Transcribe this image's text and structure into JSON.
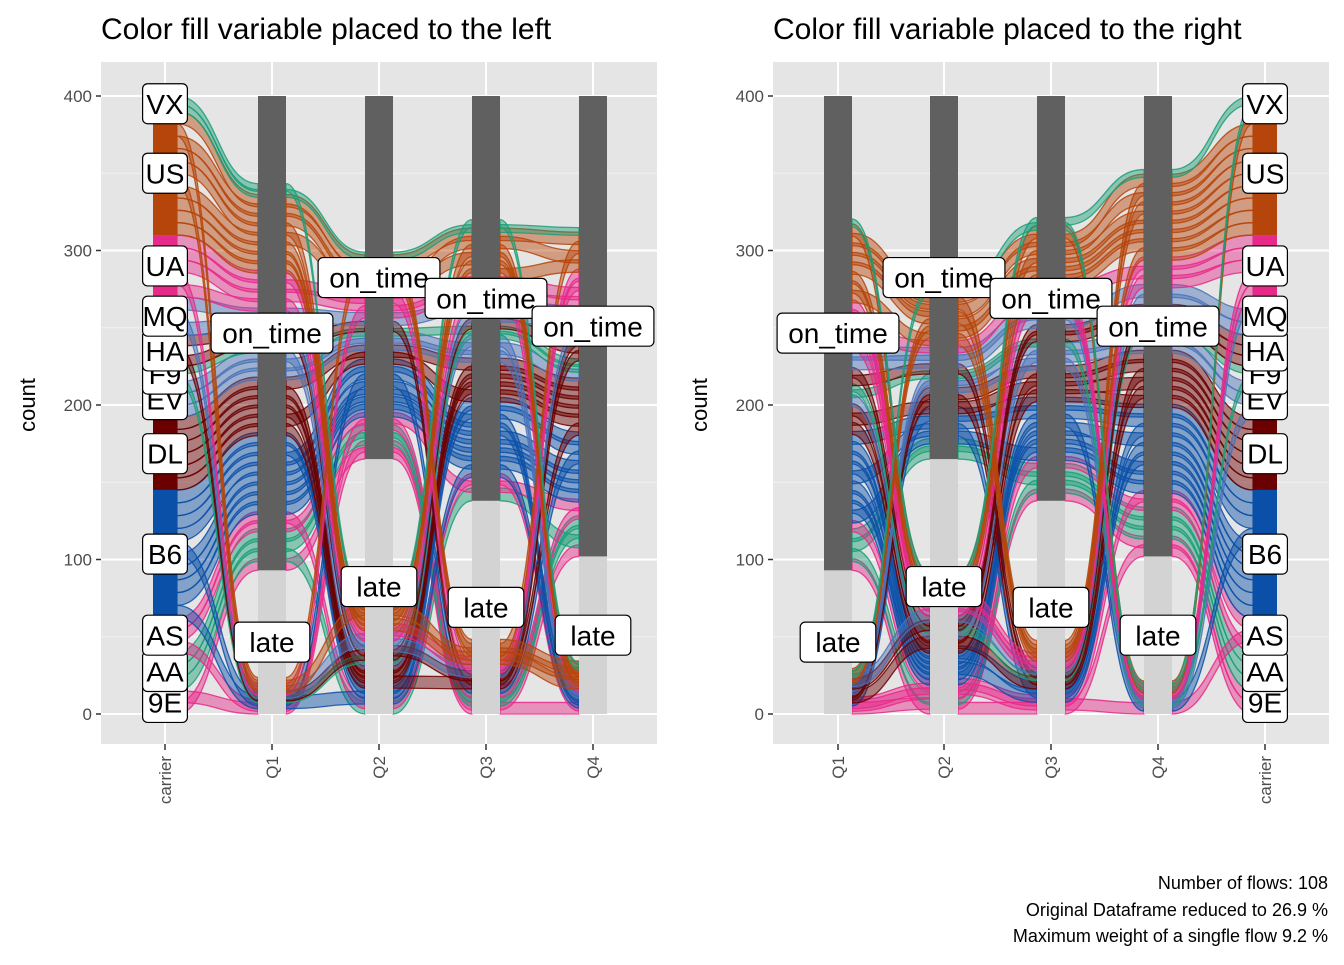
{
  "chart_data": [
    {
      "type": "alluvial",
      "title": "Color fill variable placed to the left",
      "xlabel": "",
      "ylabel": "count",
      "ylim": [
        0,
        420
      ],
      "yticks": [
        0,
        100,
        200,
        300,
        400
      ],
      "grid": true,
      "x_axis_order": [
        "carrier",
        "Q1",
        "Q2",
        "Q3",
        "Q4"
      ],
      "carrier_strata": [
        {
          "label": "9E",
          "bottom": 0,
          "top": 15
        },
        {
          "label": "AA",
          "bottom": 15,
          "top": 40
        },
        {
          "label": "AS",
          "bottom": 40,
          "top": 62
        },
        {
          "label": "B6",
          "bottom": 62,
          "top": 145
        },
        {
          "label": "DL",
          "bottom": 145,
          "top": 192
        },
        {
          "label": "EV",
          "bottom": 192,
          "top": 215
        },
        {
          "label": "F9",
          "bottom": 215,
          "top": 225
        },
        {
          "label": "HA",
          "bottom": 225,
          "top": 245
        },
        {
          "label": "MQ",
          "bottom": 245,
          "top": 270
        },
        {
          "label": "UA",
          "bottom": 270,
          "top": 310
        },
        {
          "label": "US",
          "bottom": 310,
          "top": 390
        },
        {
          "label": "VX",
          "bottom": 390,
          "top": 400
        }
      ],
      "quarter_strata": [
        {
          "quarter": "Q1",
          "late": 93,
          "on_time": 307
        },
        {
          "quarter": "Q2",
          "late": 165,
          "on_time": 235
        },
        {
          "quarter": "Q3",
          "late": 138,
          "on_time": 262
        },
        {
          "quarter": "Q4",
          "late": 102,
          "on_time": 298
        }
      ],
      "labels": {
        "late": "late",
        "on_time": "on_time"
      }
    },
    {
      "type": "alluvial",
      "title": "Color fill variable placed to the right",
      "xlabel": "",
      "ylabel": "count",
      "ylim": [
        0,
        420
      ],
      "yticks": [
        0,
        100,
        200,
        300,
        400
      ],
      "grid": true,
      "x_axis_order": [
        "Q1",
        "Q2",
        "Q3",
        "Q4",
        "carrier"
      ],
      "carrier_strata": [
        {
          "label": "9E",
          "bottom": 0,
          "top": 15
        },
        {
          "label": "AA",
          "bottom": 15,
          "top": 40
        },
        {
          "label": "AS",
          "bottom": 40,
          "top": 62
        },
        {
          "label": "B6",
          "bottom": 62,
          "top": 145
        },
        {
          "label": "DL",
          "bottom": 145,
          "top": 192
        },
        {
          "label": "EV",
          "bottom": 192,
          "top": 215
        },
        {
          "label": "F9",
          "bottom": 215,
          "top": 225
        },
        {
          "label": "HA",
          "bottom": 225,
          "top": 245
        },
        {
          "label": "MQ",
          "bottom": 245,
          "top": 270
        },
        {
          "label": "UA",
          "bottom": 270,
          "top": 310
        },
        {
          "label": "US",
          "bottom": 310,
          "top": 390
        },
        {
          "label": "VX",
          "bottom": 390,
          "top": 400
        }
      ],
      "quarter_strata": [
        {
          "quarter": "Q1",
          "late": 93,
          "on_time": 307
        },
        {
          "quarter": "Q2",
          "late": 165,
          "on_time": 235
        },
        {
          "quarter": "Q3",
          "late": 138,
          "on_time": 262
        },
        {
          "quarter": "Q4",
          "late": 102,
          "on_time": 298
        }
      ],
      "labels": {
        "late": "late",
        "on_time": "on_time"
      }
    }
  ],
  "colors": {
    "panel_background": "#e5e5e5",
    "grid": "#ffffff",
    "stratum_late": "#d3d3d3",
    "stratum_on_time": "#606060",
    "carrier": {
      "9E": "#e7298a",
      "AA": "#1b9e77",
      "AS": "#e7298a",
      "B6": "#0b50a8",
      "DL": "#6a0000",
      "EV": "#4a72b8",
      "F9": "#1b9e77",
      "HA": "#6a0000",
      "MQ": "#4a72b8",
      "UA": "#e7298a",
      "US": "#b5450b",
      "VX": "#1b9e77"
    }
  },
  "caption": [
    "Number of flows: 108",
    "Original Dataframe reduced to 26.9 %",
    "Maximum weight of a singfle flow 9.2 %"
  ]
}
